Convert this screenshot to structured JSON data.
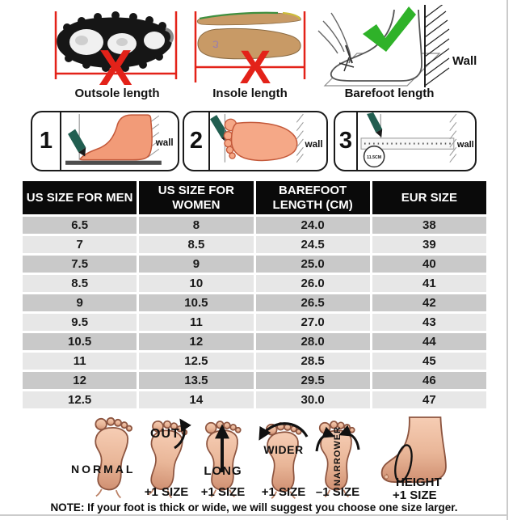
{
  "top_figures": [
    {
      "caption": "Outsole length",
      "mark_glyph": "X"
    },
    {
      "caption": "Insole length",
      "mark_glyph": "X"
    },
    {
      "caption": "Barefoot length",
      "wall_label": "Wall"
    }
  ],
  "steps": [
    {
      "number": "1",
      "wall_label": "wall"
    },
    {
      "number": "2",
      "wall_label": "wall"
    },
    {
      "number": "3",
      "wall_label": "wall",
      "ruler_label": "11.5CM"
    }
  ],
  "size_table": {
    "headers": [
      "US SIZE FOR MEN",
      "US SIZE FOR WOMEN",
      "BAREFOOT LENGTH (CM)",
      "EUR SIZE"
    ],
    "rows": [
      [
        "6.5",
        "8",
        "24.0",
        "38"
      ],
      [
        "7",
        "8.5",
        "24.5",
        "39"
      ],
      [
        "7.5",
        "9",
        "25.0",
        "40"
      ],
      [
        "8.5",
        "10",
        "26.0",
        "41"
      ],
      [
        "9",
        "10.5",
        "26.5",
        "42"
      ],
      [
        "9.5",
        "11",
        "27.0",
        "43"
      ],
      [
        "10.5",
        "12",
        "28.0",
        "44"
      ],
      [
        "11",
        "12.5",
        "28.5",
        "45"
      ],
      [
        "12",
        "13.5",
        "29.5",
        "46"
      ],
      [
        "12.5",
        "14",
        "30.0",
        "47"
      ]
    ]
  },
  "fit_guide": {
    "items": [
      {
        "label": "NORMAL"
      },
      {
        "label": "OUT",
        "size_note": "+1 SIZE"
      },
      {
        "label": "LONG",
        "size_note": "+1 SIZE"
      },
      {
        "label": "WIDER",
        "size_note": "+1 SIZE"
      },
      {
        "label": "NARROWER",
        "size_note": "–1 SIZE"
      },
      {
        "label": "HEIGHT",
        "size_note": "+1 SIZE"
      }
    ]
  },
  "note": "NOTE: If your foot is thick or wide, we will suggest you choose one size larger.",
  "colors": {
    "red": "#e32219",
    "green": "#2fb229",
    "table_header_bg": "#0a0a0a",
    "row_dark": "#c9c9c9",
    "row_light": "#e7e7e7",
    "skin": "#f29b78",
    "insole_tan": "#c89a66",
    "pencil_green": "#215e50"
  }
}
